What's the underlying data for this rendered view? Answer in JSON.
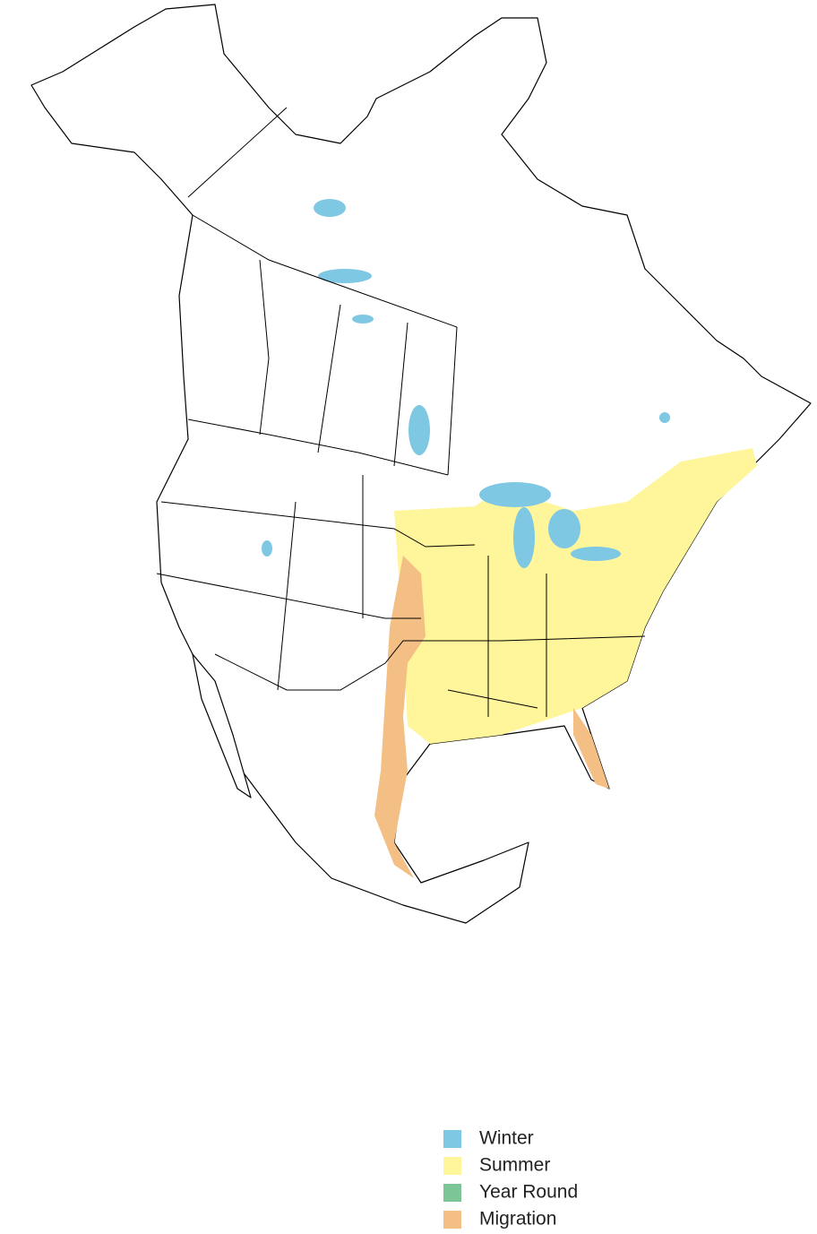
{
  "legend": [
    {
      "label": "Winter",
      "color": "#7ec8e3"
    },
    {
      "label": "Summer",
      "color": "#fff59a"
    },
    {
      "label": "Year Round",
      "color": "#7cc596"
    },
    {
      "label": "Migration",
      "color": "#f3bf85"
    }
  ]
}
